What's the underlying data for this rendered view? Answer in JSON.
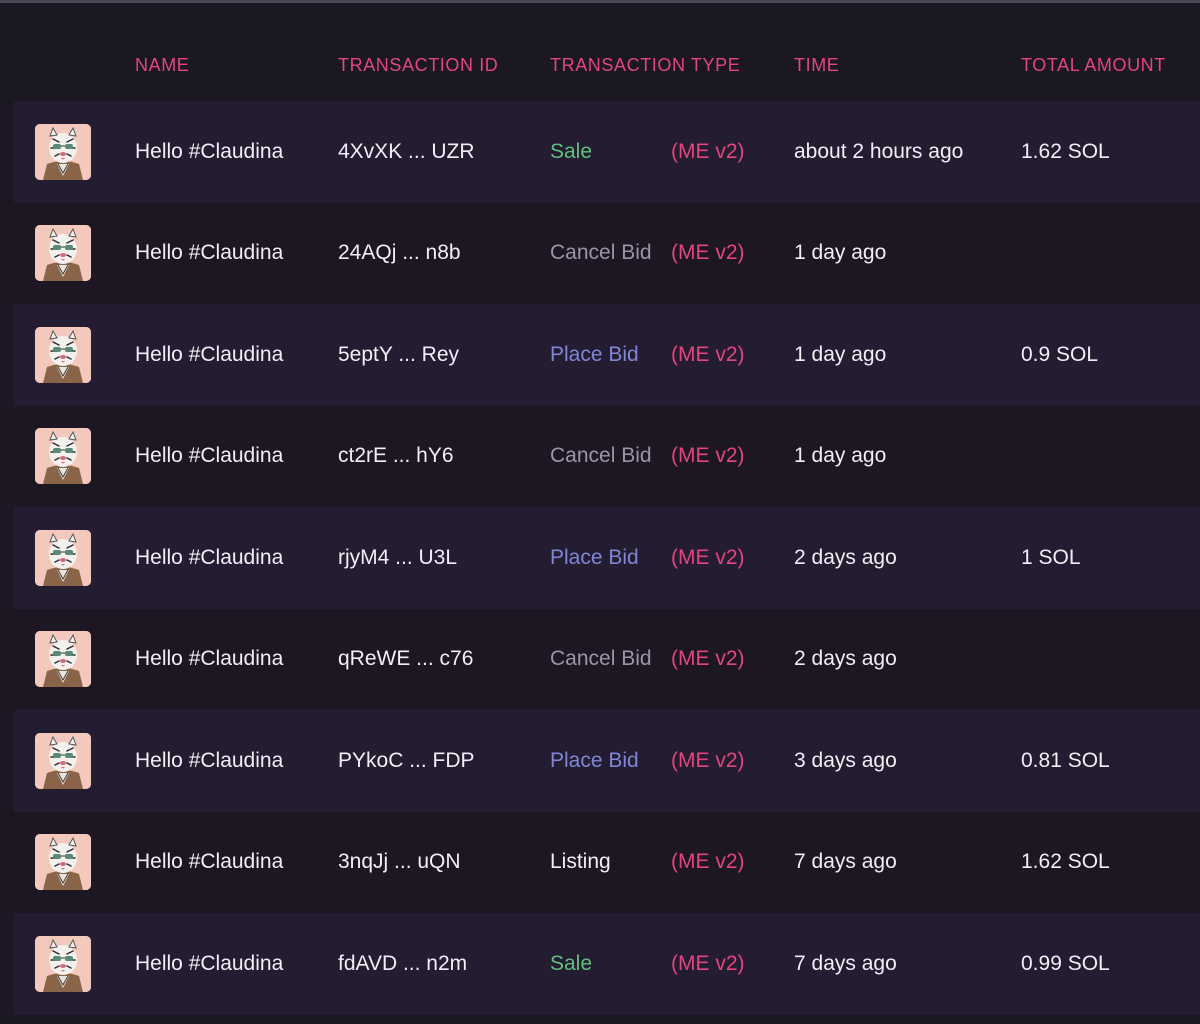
{
  "table": {
    "headers": {
      "name": "NAME",
      "transaction_id": "TRANSACTION ID",
      "transaction_type": "TRANSACTION TYPE",
      "time": "TIME",
      "total_amount": "TOTAL AMOUNT"
    },
    "colors": {
      "header": "#e2457f",
      "sale": "#5fc07c",
      "cancel_bid": "#9a95a6",
      "place_bid": "#7f86d6",
      "marketplace": "#e2457f"
    },
    "rows": [
      {
        "avatar_icon": "tiger-nft-avatar-icon",
        "name": "Hello #Claudina",
        "txid": "4XvXK ... UZR",
        "type": "Sale",
        "type_kind": "sale",
        "market": "(ME v2)",
        "time": "about 2 hours ago",
        "amount": "1.62 SOL"
      },
      {
        "avatar_icon": "tiger-nft-avatar-icon",
        "name": "Hello #Claudina",
        "txid": "24AQj ... n8b",
        "type": "Cancel Bid",
        "type_kind": "cancel",
        "market": "(ME v2)",
        "time": "1 day ago",
        "amount": ""
      },
      {
        "avatar_icon": "tiger-nft-avatar-icon",
        "name": "Hello #Claudina",
        "txid": "5eptY ... Rey",
        "type": "Place Bid",
        "type_kind": "bid",
        "market": "(ME v2)",
        "time": "1 day ago",
        "amount": "0.9 SOL"
      },
      {
        "avatar_icon": "tiger-nft-avatar-icon",
        "name": "Hello #Claudina",
        "txid": "ct2rE ... hY6",
        "type": "Cancel Bid",
        "type_kind": "cancel",
        "market": "(ME v2)",
        "time": "1 day ago",
        "amount": ""
      },
      {
        "avatar_icon": "tiger-nft-avatar-icon",
        "name": "Hello #Claudina",
        "txid": "rjyM4 ... U3L",
        "type": "Place Bid",
        "type_kind": "bid",
        "market": "(ME v2)",
        "time": "2 days ago",
        "amount": "1 SOL"
      },
      {
        "avatar_icon": "tiger-nft-avatar-icon",
        "name": "Hello #Claudina",
        "txid": "qReWE ... c76",
        "type": "Cancel Bid",
        "type_kind": "cancel",
        "market": "(ME v2)",
        "time": "2 days ago",
        "amount": ""
      },
      {
        "avatar_icon": "tiger-nft-avatar-icon",
        "name": "Hello #Claudina",
        "txid": "PYkoC ... FDP",
        "type": "Place Bid",
        "type_kind": "bid",
        "market": "(ME v2)",
        "time": "3 days ago",
        "amount": "0.81 SOL"
      },
      {
        "avatar_icon": "tiger-nft-avatar-icon",
        "name": "Hello #Claudina",
        "txid": "3nqJj ... uQN",
        "type": "Listing",
        "type_kind": "listing",
        "market": "(ME v2)",
        "time": "7 days ago",
        "amount": "1.62 SOL"
      },
      {
        "avatar_icon": "tiger-nft-avatar-icon",
        "name": "Hello #Claudina",
        "txid": "fdAVD ... n2m",
        "type": "Sale",
        "type_kind": "sale",
        "market": "(ME v2)",
        "time": "7 days ago",
        "amount": "0.99 SOL"
      }
    ]
  }
}
